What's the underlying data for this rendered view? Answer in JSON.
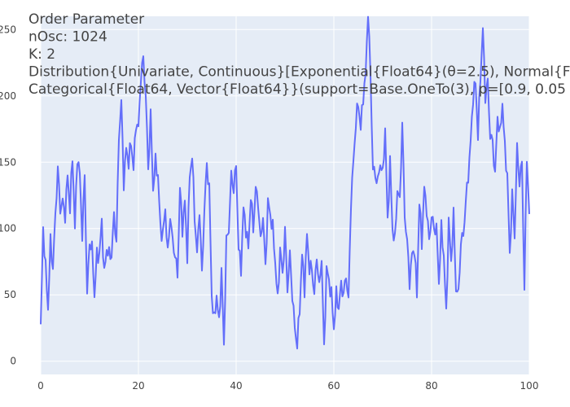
{
  "chart_data": {
    "type": "line",
    "title_lines": [
      "Order Parameter",
      "nOsc: 1024",
      "K: 2",
      "Distribution{Univariate, Continuous}[Exponential{Float64}(θ=2.5), Normal{F",
      "Categorical{Float64, Vector{Float64}}(support=Base.OneTo(3), p=[0.9, 0.05"
    ],
    "xlabel": "",
    "ylabel": "",
    "xlim": [
      0,
      100
    ],
    "ylim": [
      -10,
      260
    ],
    "x_ticks": [
      0,
      20,
      40,
      60,
      80,
      100
    ],
    "y_ticks": [
      0,
      50,
      100,
      150,
      200,
      250
    ],
    "x_tick_labels": [
      "0",
      "20",
      "40",
      "60",
      "80",
      "100"
    ],
    "y_tick_labels": [
      "0",
      "50",
      "100",
      "150",
      "200",
      "250"
    ],
    "grid": true,
    "legend": "none",
    "colors": {
      "line": "#636efa",
      "plot_bg": "#e5ecf6",
      "grid": "#ffffff",
      "text": "#444444"
    },
    "x_step": 0.25,
    "keypoints": [
      [
        0,
        25
      ],
      [
        0.5,
        100
      ],
      [
        1.5,
        40
      ],
      [
        2,
        90
      ],
      [
        2.5,
        70
      ],
      [
        3,
        110
      ],
      [
        3.5,
        145
      ],
      [
        4,
        115
      ],
      [
        4.5,
        120
      ],
      [
        5,
        110
      ],
      [
        5.5,
        140
      ],
      [
        6,
        115
      ],
      [
        6.5,
        155
      ],
      [
        7,
        100
      ],
      [
        7.5,
        155
      ],
      [
        8,
        140
      ],
      [
        8.5,
        95
      ],
      [
        9,
        140
      ],
      [
        9.5,
        50
      ],
      [
        10,
        90
      ],
      [
        10.5,
        85
      ],
      [
        11,
        50
      ],
      [
        11.5,
        80
      ],
      [
        12,
        80
      ],
      [
        12.5,
        105
      ],
      [
        13,
        65
      ],
      [
        13.5,
        85
      ],
      [
        14,
        80
      ],
      [
        14.5,
        80
      ],
      [
        15,
        110
      ],
      [
        15.5,
        90
      ],
      [
        16,
        170
      ],
      [
        16.5,
        195
      ],
      [
        17,
        135
      ],
      [
        17.5,
        160
      ],
      [
        18,
        150
      ],
      [
        18.5,
        165
      ],
      [
        19,
        145
      ],
      [
        19.5,
        180
      ],
      [
        20,
        175
      ],
      [
        20.5,
        215
      ],
      [
        21,
        228
      ],
      [
        21.5,
        200
      ],
      [
        22,
        145
      ],
      [
        22.5,
        185
      ],
      [
        23,
        130
      ],
      [
        23.5,
        150
      ],
      [
        24,
        140
      ],
      [
        24.5,
        100
      ],
      [
        25,
        95
      ],
      [
        25.5,
        115
      ],
      [
        26,
        80
      ],
      [
        26.5,
        110
      ],
      [
        27,
        90
      ],
      [
        27.5,
        80
      ],
      [
        28,
        65
      ],
      [
        28.5,
        130
      ],
      [
        29,
        100
      ],
      [
        29.5,
        120
      ],
      [
        30,
        80
      ],
      [
        30.5,
        140
      ],
      [
        31,
        155
      ],
      [
        31.5,
        110
      ],
      [
        32,
        80
      ],
      [
        32.5,
        115
      ],
      [
        33,
        65
      ],
      [
        33.5,
        115
      ],
      [
        34,
        148
      ],
      [
        34.5,
        130
      ],
      [
        35,
        50
      ],
      [
        35.5,
        30
      ],
      [
        36,
        50
      ],
      [
        36.5,
        28
      ],
      [
        37,
        68
      ],
      [
        37.5,
        12
      ],
      [
        38,
        90
      ],
      [
        38.5,
        100
      ],
      [
        39,
        140
      ],
      [
        39.5,
        130
      ],
      [
        40,
        148
      ],
      [
        40.5,
        85
      ],
      [
        41,
        70
      ],
      [
        41.5,
        115
      ],
      [
        42,
        100
      ],
      [
        42.5,
        85
      ],
      [
        43,
        125
      ],
      [
        43.5,
        100
      ],
      [
        44,
        130
      ],
      [
        44.5,
        120
      ],
      [
        45,
        90
      ],
      [
        45.5,
        110
      ],
      [
        46,
        70
      ],
      [
        46.5,
        120
      ],
      [
        47,
        110
      ],
      [
        47.5,
        100
      ],
      [
        48,
        75
      ],
      [
        48.5,
        45
      ],
      [
        49,
        85
      ],
      [
        49.5,
        65
      ],
      [
        50,
        98
      ],
      [
        50.5,
        55
      ],
      [
        51,
        80
      ],
      [
        51.5,
        50
      ],
      [
        52,
        25
      ],
      [
        52.5,
        12
      ],
      [
        53,
        40
      ],
      [
        53.5,
        80
      ],
      [
        54,
        55
      ],
      [
        54.5,
        95
      ],
      [
        55,
        70
      ],
      [
        55.5,
        70
      ],
      [
        56,
        50
      ],
      [
        56.5,
        80
      ],
      [
        57,
        55
      ],
      [
        57.5,
        78
      ],
      [
        58,
        8
      ],
      [
        58.5,
        70
      ],
      [
        59,
        60
      ],
      [
        59.5,
        50
      ],
      [
        60,
        25
      ],
      [
        60.5,
        50
      ],
      [
        61,
        40
      ],
      [
        61.5,
        58
      ],
      [
        62,
        50
      ],
      [
        62.5,
        65
      ],
      [
        63,
        45
      ],
      [
        63.5,
        120
      ],
      [
        64,
        150
      ],
      [
        64.5,
        180
      ],
      [
        65,
        195
      ],
      [
        65.5,
        175
      ],
      [
        66,
        200
      ],
      [
        66.5,
        215
      ],
      [
        67,
        265
      ],
      [
        67.5,
        215
      ],
      [
        68,
        145
      ],
      [
        68.5,
        140
      ],
      [
        69,
        135
      ],
      [
        69.5,
        150
      ],
      [
        70,
        140
      ],
      [
        70.5,
        175
      ],
      [
        71,
        105
      ],
      [
        71.5,
        150
      ],
      [
        72,
        100
      ],
      [
        72.5,
        90
      ],
      [
        73,
        130
      ],
      [
        73.5,
        120
      ],
      [
        74,
        180
      ],
      [
        74.5,
        110
      ],
      [
        75,
        90
      ],
      [
        75.5,
        60
      ],
      [
        76,
        80
      ],
      [
        76.5,
        85
      ],
      [
        77,
        50
      ],
      [
        77.5,
        120
      ],
      [
        78,
        90
      ],
      [
        78.5,
        130
      ],
      [
        79,
        115
      ],
      [
        79.5,
        90
      ],
      [
        80,
        110
      ],
      [
        80.5,
        100
      ],
      [
        81,
        100
      ],
      [
        81.5,
        60
      ],
      [
        82,
        100
      ],
      [
        82.5,
        80
      ],
      [
        83,
        35
      ],
      [
        83.5,
        105
      ],
      [
        84,
        75
      ],
      [
        84.5,
        110
      ],
      [
        85,
        55
      ],
      [
        85.5,
        50
      ],
      [
        86,
        90
      ],
      [
        86.5,
        95
      ],
      [
        87,
        120
      ],
      [
        87.5,
        140
      ],
      [
        88,
        165
      ],
      [
        88.5,
        200
      ],
      [
        89,
        210
      ],
      [
        89.5,
        170
      ],
      [
        90,
        215
      ],
      [
        90.5,
        250
      ],
      [
        91,
        200
      ],
      [
        91.5,
        210
      ],
      [
        92,
        170
      ],
      [
        92.5,
        165
      ],
      [
        93,
        140
      ],
      [
        93.5,
        185
      ],
      [
        94,
        170
      ],
      [
        94.5,
        195
      ],
      [
        95,
        160
      ],
      [
        95.5,
        140
      ],
      [
        96,
        80
      ],
      [
        96.5,
        125
      ],
      [
        97,
        95
      ],
      [
        97.5,
        160
      ],
      [
        98,
        135
      ],
      [
        98.5,
        150
      ],
      [
        99,
        55
      ],
      [
        99.5,
        155
      ],
      [
        100,
        110
      ]
    ]
  }
}
